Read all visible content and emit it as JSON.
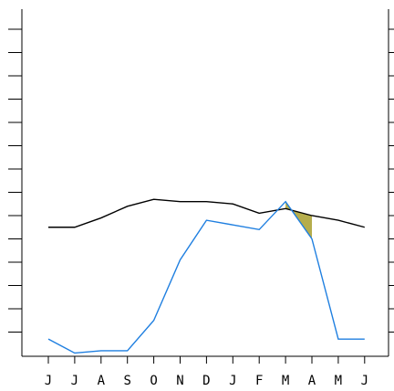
{
  "chart_data": {
    "type": "line",
    "title": "",
    "xlabel": "",
    "ylabel": "",
    "categories": [
      "J",
      "J",
      "A",
      "S",
      "O",
      "N",
      "D",
      "J",
      "F",
      "M",
      "A",
      "M",
      "J"
    ],
    "ylim": [
      0,
      15
    ],
    "y_tick_count": 15,
    "grid": false,
    "y_tick_labels_shown": false,
    "series": [
      {
        "values": [
          5.5,
          5.5,
          5.9,
          6.4,
          6.7,
          6.6,
          6.6,
          6.5,
          6.1,
          6.3,
          6.0,
          5.8,
          5.5
        ],
        "color": "#000000"
      },
      {
        "values": [
          0.7,
          0.1,
          0.2,
          0.2,
          1.5,
          4.1,
          5.8,
          5.6,
          5.4,
          6.6,
          5.0,
          0.7,
          0.7
        ],
        "color": "#1f7fe0"
      }
    ],
    "shaded_region": {
      "description_free": true,
      "x_from": 9,
      "x_to": 10,
      "upper_series": 0,
      "lower_series": 1,
      "color": "#b5ad4c"
    }
  }
}
